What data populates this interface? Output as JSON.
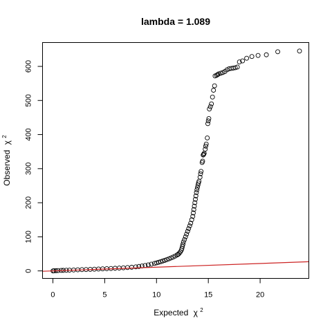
{
  "chart_data": {
    "type": "scatter",
    "title": "lambda = 1.089",
    "xlabel": "Expected",
    "xlabel_symbol": "χ",
    "xlabel_sup": "2",
    "ylabel": "Observed",
    "ylabel_symbol": "χ",
    "ylabel_sup": "2",
    "xlim": [
      -1,
      24.7
    ],
    "ylim": [
      -22,
      670
    ],
    "xticks": [
      0,
      5,
      10,
      15,
      20
    ],
    "yticks": [
      0,
      100,
      200,
      300,
      400,
      500,
      600
    ],
    "grid": false,
    "legend": false,
    "point_color": "#000000",
    "reference_line": {
      "intercept": 0,
      "slope": 1.089,
      "color": "#cc2222"
    },
    "series": [
      {
        "points": [
          [
            0.01,
            0.0
          ],
          [
            0.1,
            0.3
          ],
          [
            0.3,
            0.6
          ],
          [
            0.5,
            1.0
          ],
          [
            0.8,
            1.4
          ],
          [
            1.0,
            1.6
          ],
          [
            1.3,
            2.0
          ],
          [
            1.6,
            2.3
          ],
          [
            2.0,
            2.8
          ],
          [
            2.4,
            3.2
          ],
          [
            2.8,
            3.7
          ],
          [
            3.2,
            4.1
          ],
          [
            3.6,
            4.6
          ],
          [
            4.0,
            5.0
          ],
          [
            4.4,
            5.6
          ],
          [
            4.8,
            6.0
          ],
          [
            5.2,
            6.6
          ],
          [
            5.6,
            7.1
          ],
          [
            6.0,
            7.7
          ],
          [
            6.4,
            8.3
          ],
          [
            6.8,
            9.0
          ],
          [
            7.2,
            9.8
          ],
          [
            7.6,
            10.7
          ],
          [
            8.0,
            11.8
          ],
          [
            8.3,
            13.0
          ],
          [
            8.6,
            14.5
          ],
          [
            8.9,
            16.0
          ],
          [
            9.2,
            17.8
          ],
          [
            9.5,
            19.8
          ],
          [
            9.8,
            22.0
          ],
          [
            10.0,
            23.5
          ],
          [
            10.2,
            25.2
          ],
          [
            10.4,
            27.0
          ],
          [
            10.6,
            29.0
          ],
          [
            10.8,
            31.0
          ],
          [
            11.0,
            33.2
          ],
          [
            11.2,
            35.5
          ],
          [
            11.4,
            38.0
          ],
          [
            11.6,
            40.5
          ],
          [
            11.8,
            43.5
          ],
          [
            12.0,
            47.0
          ],
          [
            12.1,
            49.0
          ],
          [
            12.2,
            52.0
          ],
          [
            12.3,
            56.0
          ],
          [
            12.4,
            61.0
          ],
          [
            12.45,
            66.0
          ],
          [
            12.5,
            72.0
          ],
          [
            12.55,
            78.0
          ],
          [
            12.6,
            85.0
          ],
          [
            12.7,
            92.0
          ],
          [
            12.8,
            100.0
          ],
          [
            12.9,
            108.0
          ],
          [
            13.0,
            116.0
          ],
          [
            13.1,
            124.0
          ],
          [
            13.2,
            132.0
          ],
          [
            13.3,
            140.0
          ],
          [
            13.4,
            150.0
          ],
          [
            13.5,
            160.0
          ],
          [
            13.55,
            170.0
          ],
          [
            13.6,
            180.0
          ],
          [
            13.65,
            190.0
          ],
          [
            13.7,
            200.0
          ],
          [
            13.75,
            210.0
          ],
          [
            13.8,
            220.0
          ],
          [
            13.85,
            230.0
          ],
          [
            13.9,
            238.0
          ],
          [
            13.95,
            245.0
          ],
          [
            14.0,
            252.0
          ],
          [
            14.05,
            258.0
          ],
          [
            14.1,
            263.0
          ],
          [
            14.2,
            275.0
          ],
          [
            14.25,
            285.0
          ],
          [
            14.3,
            292.0
          ],
          [
            14.4,
            318.0
          ],
          [
            14.45,
            322.0
          ],
          [
            14.5,
            340.0
          ],
          [
            14.55,
            342.0
          ],
          [
            14.6,
            345.0
          ],
          [
            14.7,
            357.0
          ],
          [
            14.75,
            366.0
          ],
          [
            14.8,
            372.0
          ],
          [
            14.9,
            390.0
          ],
          [
            14.95,
            432.0
          ],
          [
            15.0,
            440.0
          ],
          [
            15.05,
            447.0
          ],
          [
            15.1,
            475.0
          ],
          [
            15.2,
            482.0
          ],
          [
            15.3,
            490.0
          ],
          [
            15.4,
            510.0
          ],
          [
            15.5,
            530.0
          ],
          [
            15.6,
            543.0
          ],
          [
            15.65,
            572.0
          ],
          [
            15.8,
            574.0
          ],
          [
            15.9,
            576.0
          ],
          [
            16.0,
            578.0
          ],
          [
            16.2,
            580.0
          ],
          [
            16.4,
            582.0
          ],
          [
            16.6,
            585.0
          ],
          [
            16.8,
            590.0
          ],
          [
            17.0,
            593.0
          ],
          [
            17.2,
            594.0
          ],
          [
            17.4,
            595.0
          ],
          [
            17.6,
            596.0
          ],
          [
            17.8,
            598.0
          ],
          [
            18.0,
            613.0
          ],
          [
            18.3,
            616.0
          ],
          [
            18.7,
            624.0
          ],
          [
            19.2,
            629.0
          ],
          [
            19.8,
            632.0
          ],
          [
            20.6,
            634.0
          ],
          [
            21.7,
            643.0
          ],
          [
            23.8,
            645.0
          ]
        ]
      }
    ]
  }
}
